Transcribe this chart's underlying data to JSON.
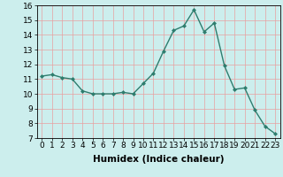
{
  "x": [
    0,
    1,
    2,
    3,
    4,
    5,
    6,
    7,
    8,
    9,
    10,
    11,
    12,
    13,
    14,
    15,
    16,
    17,
    18,
    19,
    20,
    21,
    22,
    23
  ],
  "y": [
    11.2,
    11.3,
    11.1,
    11.0,
    10.2,
    10.0,
    10.0,
    10.0,
    10.1,
    10.0,
    10.7,
    11.4,
    12.9,
    14.3,
    14.6,
    15.7,
    14.2,
    14.8,
    11.9,
    10.3,
    10.4,
    8.9,
    7.8,
    7.3
  ],
  "line_color": "#2e7d6e",
  "marker": "D",
  "marker_size": 2.0,
  "bg_color": "#cceeed",
  "grid_color": "#e8a0a0",
  "xlabel": "Humidex (Indice chaleur)",
  "xlim": [
    -0.5,
    23.5
  ],
  "ylim": [
    7,
    16
  ],
  "xticks": [
    0,
    1,
    2,
    3,
    4,
    5,
    6,
    7,
    8,
    9,
    10,
    11,
    12,
    13,
    14,
    15,
    16,
    17,
    18,
    19,
    20,
    21,
    22,
    23
  ],
  "yticks": [
    7,
    8,
    9,
    10,
    11,
    12,
    13,
    14,
    15,
    16
  ],
  "tick_fontsize": 6.5,
  "label_fontsize": 7.5,
  "linewidth": 1.0
}
